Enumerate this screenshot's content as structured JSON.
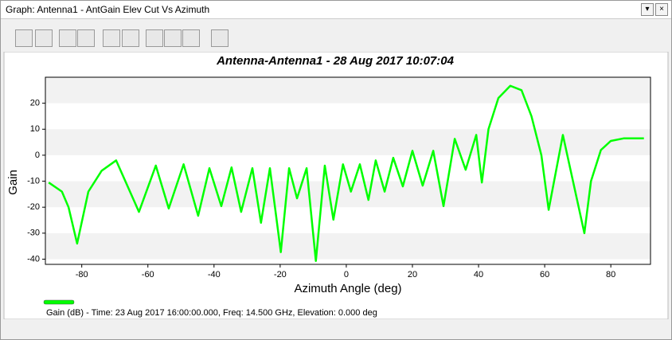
{
  "window": {
    "title": "Graph:  Antenna1 - AntGain Elev Cut Vs Azimuth"
  },
  "chart_data": {
    "type": "line",
    "title": "Antenna-Antenna1 - 28 Aug 2017 10:07:04",
    "x_label": "Azimuth Angle (deg)",
    "y_label": "Gain",
    "xlim": [
      -91,
      92
    ],
    "ylim": [
      -42,
      30
    ],
    "xticks": [
      -80,
      -60,
      -40,
      -20,
      0,
      20,
      40,
      60,
      80
    ],
    "yticks": [
      -40,
      -30,
      -20,
      -10,
      0,
      10,
      20
    ],
    "grid": "bands",
    "x": [
      -90,
      -86,
      -84,
      -81.4,
      -78,
      -74,
      -69.6,
      -62.7,
      -57.6,
      -53.7,
      -49.2,
      -44.8,
      -41.4,
      -37.8,
      -34.7,
      -31.8,
      -28.4,
      -25.8,
      -23.1,
      -19.8,
      -17.3,
      -14.9,
      -12,
      -9.2,
      -6.5,
      -3.9,
      -1,
      1.4,
      4.1,
      6.7,
      8.9,
      11.6,
      14.2,
      17.1,
      20,
      23.1,
      26.3,
      29.4,
      32.8,
      36.1,
      39.3,
      41,
      43,
      46,
      49.6,
      53,
      56,
      59,
      61.2,
      65.5,
      72,
      74,
      77,
      80,
      84,
      90
    ],
    "series": [
      {
        "name": "Gain (dB) - Time: 23 Aug 2017 16:00:00.000, Freq: 14.500 GHz, Elevation: 0.000 deg",
        "color": "#00ff00",
        "values": [
          -10.5,
          -14,
          -20,
          -34,
          -14,
          -6,
          -2,
          -21.8,
          -4,
          -20.5,
          -3.5,
          -23.3,
          -5,
          -19.6,
          -4.7,
          -21.8,
          -5,
          -26,
          -5,
          -37.3,
          -5,
          -16.6,
          -5,
          -40.7,
          -4,
          -24.8,
          -3.5,
          -14,
          -3.5,
          -17.2,
          -2,
          -14,
          -1,
          -12,
          1.7,
          -11.7,
          1.7,
          -19.6,
          6.3,
          -5.6,
          7.8,
          -10.5,
          10,
          22,
          26.7,
          25,
          15,
          0,
          -21,
          7.8,
          -30,
          -10,
          2,
          5.5,
          6.5,
          6.5
        ]
      }
    ]
  }
}
